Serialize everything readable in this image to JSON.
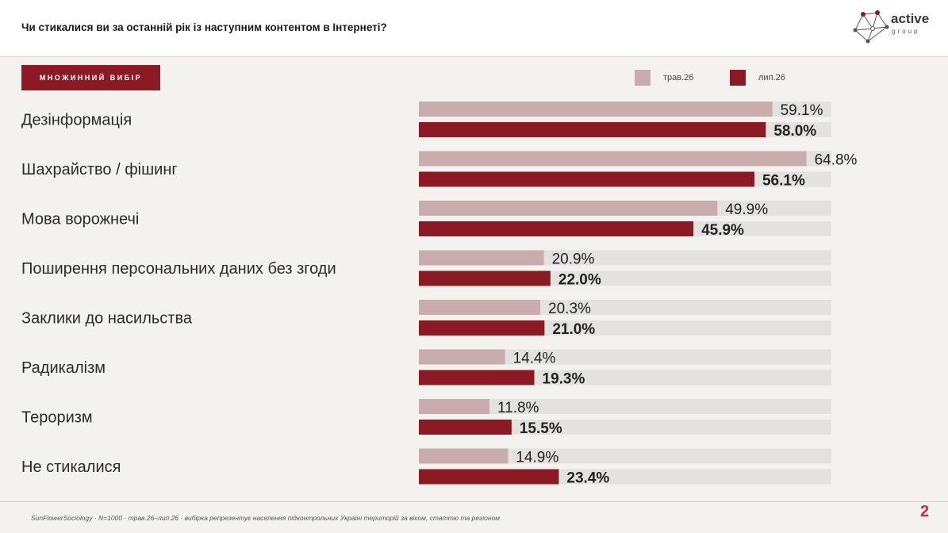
{
  "header": {
    "title": "Чи стикалися ви за останній рік із наступним контентом в Інтернеті?",
    "logo_word": "active",
    "logo_sub": "group"
  },
  "badge": "МНОЖИННИЙ ВИБІР",
  "footer": {
    "note": "SunFlowerSociology · N=1000 · трав.26–лип.26 · вибірка репрезентує населення підконтрольних Україні територій за віком, статтю та регіоном",
    "page": "2"
  },
  "colors": {
    "series1": "#c8acae",
    "series2": "#8c1a25",
    "track": "#e4e2df",
    "logo_accent": "#8c1a25"
  },
  "chart_data": {
    "type": "bar",
    "orientation": "horizontal",
    "title": "Чи стикалися ви за останній рік із наступним контентом в Інтернеті?",
    "xlim": [
      0,
      100
    ],
    "legend_position": "top-right",
    "categories": [
      "Дезінформація",
      "Шахрайство / фішинг",
      "Мова ворожнечі",
      "Поширення персональних даних без згоди",
      "Заклики до насильства",
      "Радикалізм",
      "Тероризм",
      "Не стикалися"
    ],
    "series": [
      {
        "name": "трав.26",
        "values": [
          59.1,
          64.8,
          49.9,
          20.9,
          20.3,
          14.4,
          11.8,
          14.9
        ],
        "labels": [
          "59.1%",
          "64.8%",
          "49.9%",
          "20.9%",
          "20.3%",
          "14.4%",
          "11.8%",
          "14.9%"
        ]
      },
      {
        "name": "лип.26",
        "values": [
          58.0,
          56.1,
          45.9,
          22.0,
          21.0,
          19.3,
          15.5,
          23.4
        ],
        "labels": [
          "58.0%",
          "56.1%",
          "45.9%",
          "22.0%",
          "21.0%",
          "19.3%",
          "15.5%",
          "23.4%"
        ]
      }
    ]
  }
}
